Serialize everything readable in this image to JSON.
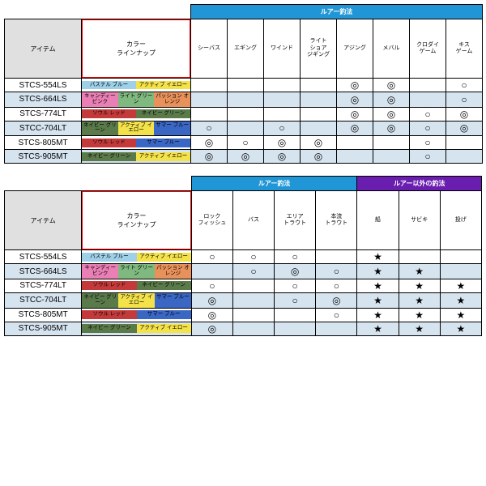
{
  "labels": {
    "item": "アイテム",
    "lineup": "カラー\nラインナップ"
  },
  "categories": {
    "lure": {
      "label": "ルアー釣法",
      "bg": "#2196d6"
    },
    "other": {
      "label": "ルアー以外の釣法",
      "bg": "#6a1eb0"
    }
  },
  "marks": {
    "double": "◎",
    "single": "○",
    "star": "★",
    "blank": ""
  },
  "colors": {
    "pastel_blue": {
      "label": "パステル\nブルー",
      "bg": "#9ed0e8"
    },
    "active_yellow": {
      "label": "アクティブ\nイエロー",
      "bg": "#f4e24a"
    },
    "candy_pink": {
      "label": "キャンディー\nピンク",
      "bg": "#e97fb4"
    },
    "light_green": {
      "label": "ライト\nグリーン",
      "bg": "#7fb97f"
    },
    "passion_orange": {
      "label": "パッション\nオレンジ",
      "bg": "#e8915a"
    },
    "soul_red": {
      "label": "ソウル\nレッド",
      "bg": "#c43a3a"
    },
    "navy_green": {
      "label": "ネイビー\nグリーン",
      "bg": "#5a7a4a"
    },
    "summer_blue": {
      "label": "サマー\nブルー",
      "bg": "#3a66c4"
    }
  },
  "table1": {
    "cols": [
      "シーバス",
      "エギング",
      "ワインド",
      "ライト\nショア\nジギング",
      "アジング",
      "メバル",
      "クロダイ\nゲーム",
      "キス\nゲーム"
    ],
    "rows": [
      {
        "item": "STCS-554LS",
        "chips": [
          "pastel_blue",
          "active_yellow"
        ],
        "m": [
          "",
          "",
          "",
          "",
          "double",
          "double",
          "",
          "single"
        ]
      },
      {
        "item": "STCS-664LS",
        "chips": [
          "candy_pink",
          "light_green",
          "passion_orange"
        ],
        "m": [
          "",
          "",
          "",
          "",
          "double",
          "double",
          "",
          "single"
        ]
      },
      {
        "item": "STCS-774LT",
        "chips": [
          "soul_red",
          "navy_green"
        ],
        "m": [
          "",
          "",
          "",
          "",
          "double",
          "double",
          "single",
          "double"
        ]
      },
      {
        "item": "STCC-704LT",
        "chips": [
          "navy_green",
          "active_yellow",
          "summer_blue"
        ],
        "m": [
          "single",
          "",
          "single",
          "",
          "double",
          "double",
          "single",
          "double"
        ]
      },
      {
        "item": "STCS-805MT",
        "chips": [
          "soul_red",
          "summer_blue"
        ],
        "m": [
          "double",
          "single",
          "double",
          "double",
          "",
          "",
          "single",
          ""
        ]
      },
      {
        "item": "STCS-905MT",
        "chips": [
          "navy_green",
          "active_yellow"
        ],
        "m": [
          "double",
          "double",
          "double",
          "double",
          "",
          "",
          "single",
          ""
        ]
      }
    ]
  },
  "table2": {
    "groups": [
      {
        "cat": "lure",
        "cols": [
          "ロック\nフィッシュ",
          "バス",
          "エリア\nトラウト",
          "本流\nトラウト"
        ]
      },
      {
        "cat": "other",
        "cols": [
          "船",
          "サビキ",
          "投げ"
        ]
      }
    ],
    "rows": [
      {
        "item": "STCS-554LS",
        "chips": [
          "pastel_blue",
          "active_yellow"
        ],
        "m": [
          "single",
          "single",
          "single",
          "",
          "star",
          "",
          ""
        ]
      },
      {
        "item": "STCS-664LS",
        "chips": [
          "candy_pink",
          "light_green",
          "passion_orange"
        ],
        "m": [
          "",
          "single",
          "double",
          "single",
          "star",
          "star",
          ""
        ]
      },
      {
        "item": "STCS-774LT",
        "chips": [
          "soul_red",
          "navy_green"
        ],
        "m": [
          "single",
          "",
          "single",
          "single",
          "star",
          "star",
          "star"
        ]
      },
      {
        "item": "STCC-704LT",
        "chips": [
          "navy_green",
          "active_yellow",
          "summer_blue"
        ],
        "m": [
          "double",
          "",
          "single",
          "double",
          "star",
          "star",
          "star"
        ]
      },
      {
        "item": "STCS-805MT",
        "chips": [
          "soul_red",
          "summer_blue"
        ],
        "m": [
          "double",
          "",
          "",
          "single",
          "star",
          "star",
          "star"
        ]
      },
      {
        "item": "STCS-905MT",
        "chips": [
          "navy_green",
          "active_yellow"
        ],
        "m": [
          "double",
          "",
          "",
          "",
          "star",
          "star",
          "star"
        ]
      }
    ]
  }
}
